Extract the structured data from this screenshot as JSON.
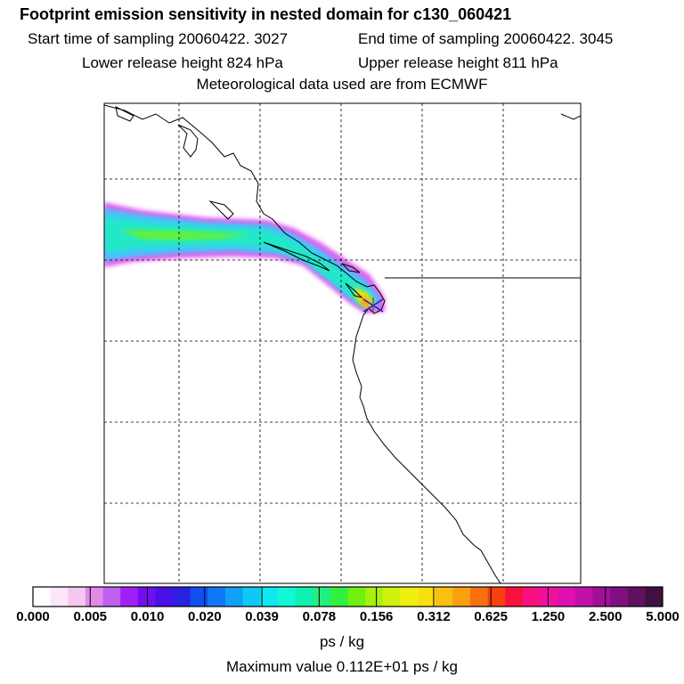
{
  "header": {
    "title": "Footprint emission sensitivity in nested domain for c130_060421",
    "start_time": "Start time of sampling 20060422.  3027",
    "end_time": "End time of sampling 20060422.  3045",
    "lower_height": "Lower release height  824 hPa",
    "upper_height": "Upper release height  811 hPa",
    "met_data": "Meteorological data used are from ECMWF"
  },
  "colorbar": {
    "tick_labels": [
      "0.000",
      "0.005",
      "0.010",
      "0.020",
      "0.039",
      "0.078",
      "0.156",
      "0.312",
      "0.625",
      "1.250",
      "2.500",
      "5.000"
    ],
    "colors": [
      "#ffffff",
      "#fde6f8",
      "#f5c8f2",
      "#e08ae8",
      "#c060f0",
      "#a020f8",
      "#7010f0",
      "#4a10e8",
      "#2a20e0",
      "#1050f0",
      "#1078f8",
      "#10a0f8",
      "#10c8f8",
      "#10e8f0",
      "#10f8d8",
      "#10f0b0",
      "#20f080",
      "#30f040",
      "#70f010",
      "#a8f010",
      "#d0f010",
      "#f0f010",
      "#f8e010",
      "#f8c010",
      "#f8a010",
      "#f87010",
      "#f84010",
      "#f81040",
      "#f81080",
      "#f010a0",
      "#e010b0",
      "#c010a8",
      "#a01098",
      "#801080",
      "#601060",
      "#401040"
    ],
    "units": "ps / kg"
  },
  "max_value": "Maximum value  0.112E+01 ps / kg",
  "plume_colors": {
    "edge": "#e060f0",
    "outer": "#40c8f8",
    "mid": "#20e8c8",
    "core": "#60f040",
    "hot": "#f0e010",
    "peak": "#f8a010"
  }
}
